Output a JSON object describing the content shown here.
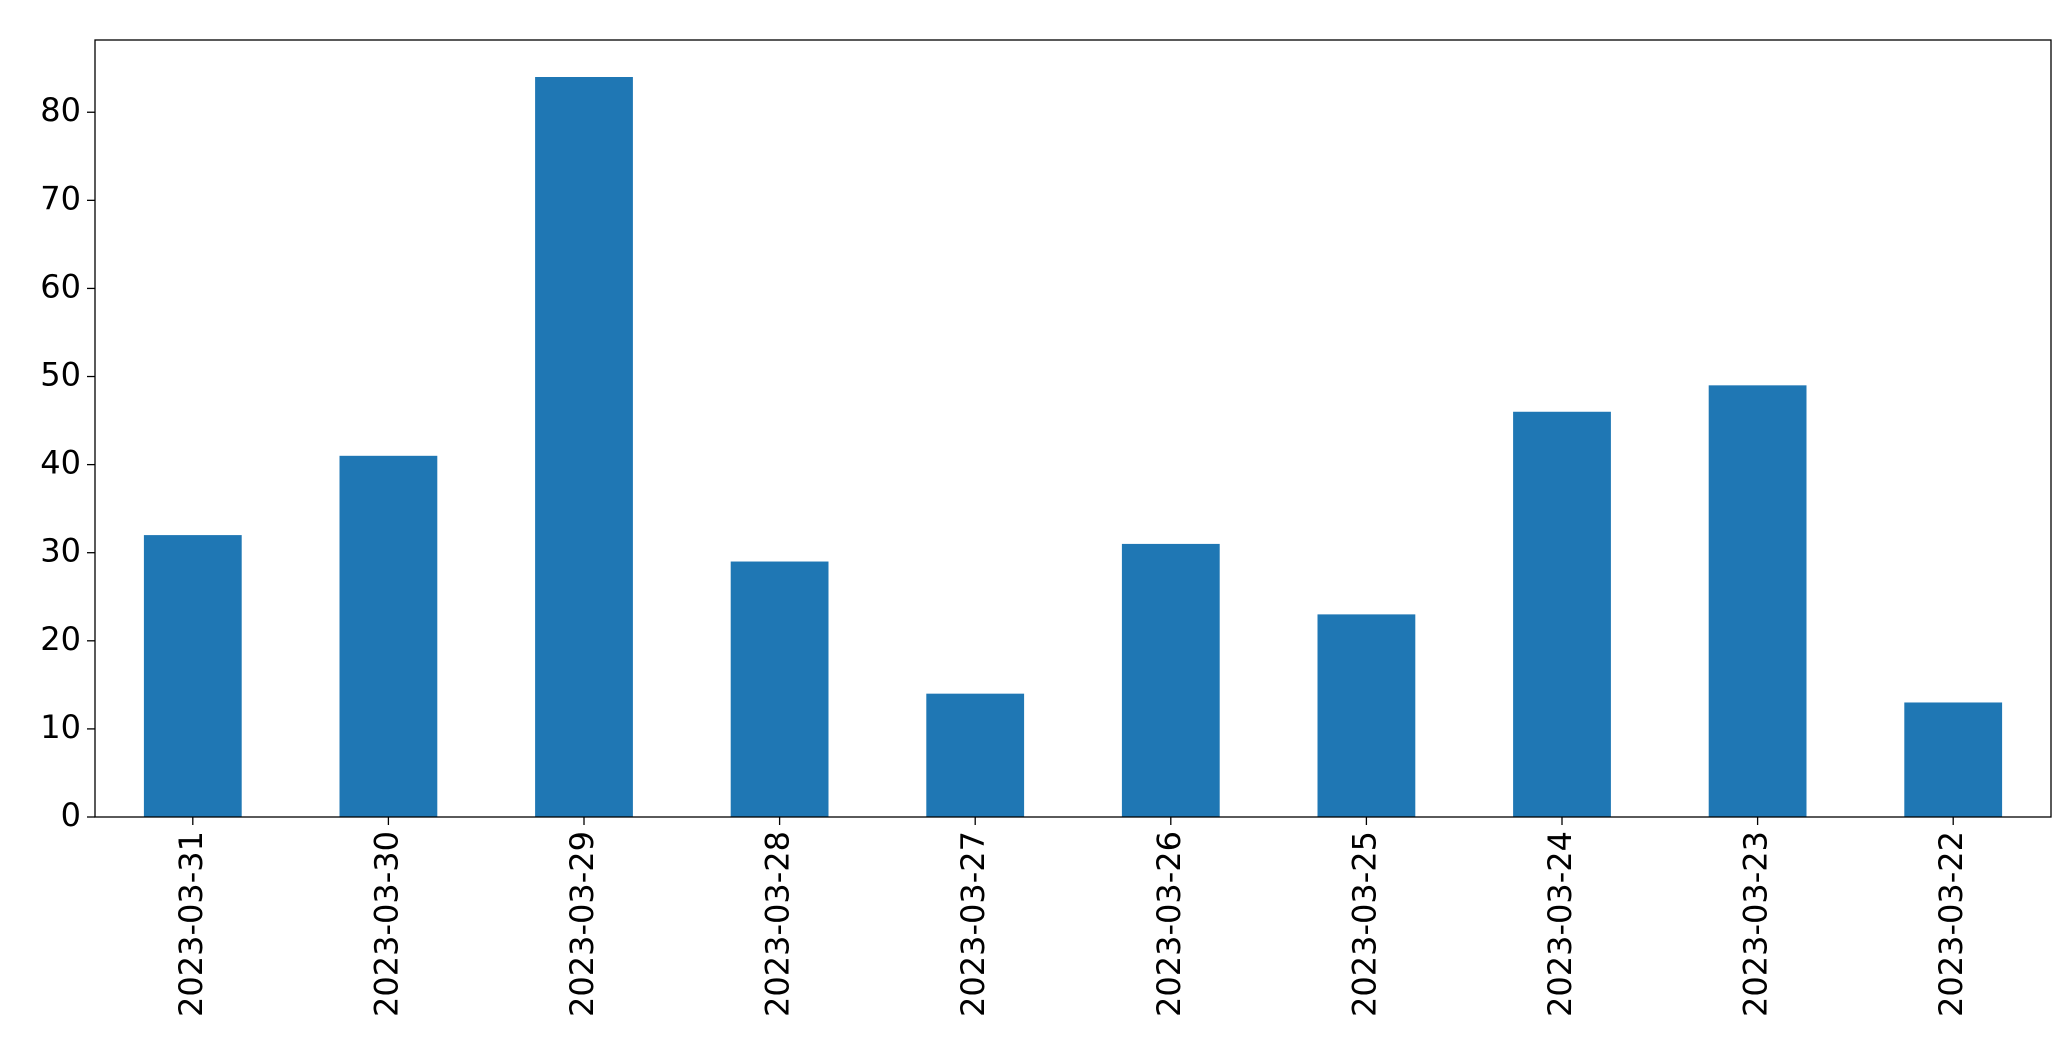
{
  "chart_data": {
    "type": "bar",
    "categories": [
      "2023-03-31",
      "2023-03-30",
      "2023-03-29",
      "2023-03-28",
      "2023-03-27",
      "2023-03-26",
      "2023-03-25",
      "2023-03-24",
      "2023-03-23",
      "2023-03-22"
    ],
    "values": [
      32,
      41,
      84,
      29,
      14,
      31,
      23,
      46,
      49,
      13
    ],
    "color": "#1f77b4",
    "ylim": [
      0,
      88.2
    ],
    "yticks": [
      0,
      10,
      20,
      30,
      40,
      50,
      60,
      70,
      80
    ],
    "grid": false
  }
}
